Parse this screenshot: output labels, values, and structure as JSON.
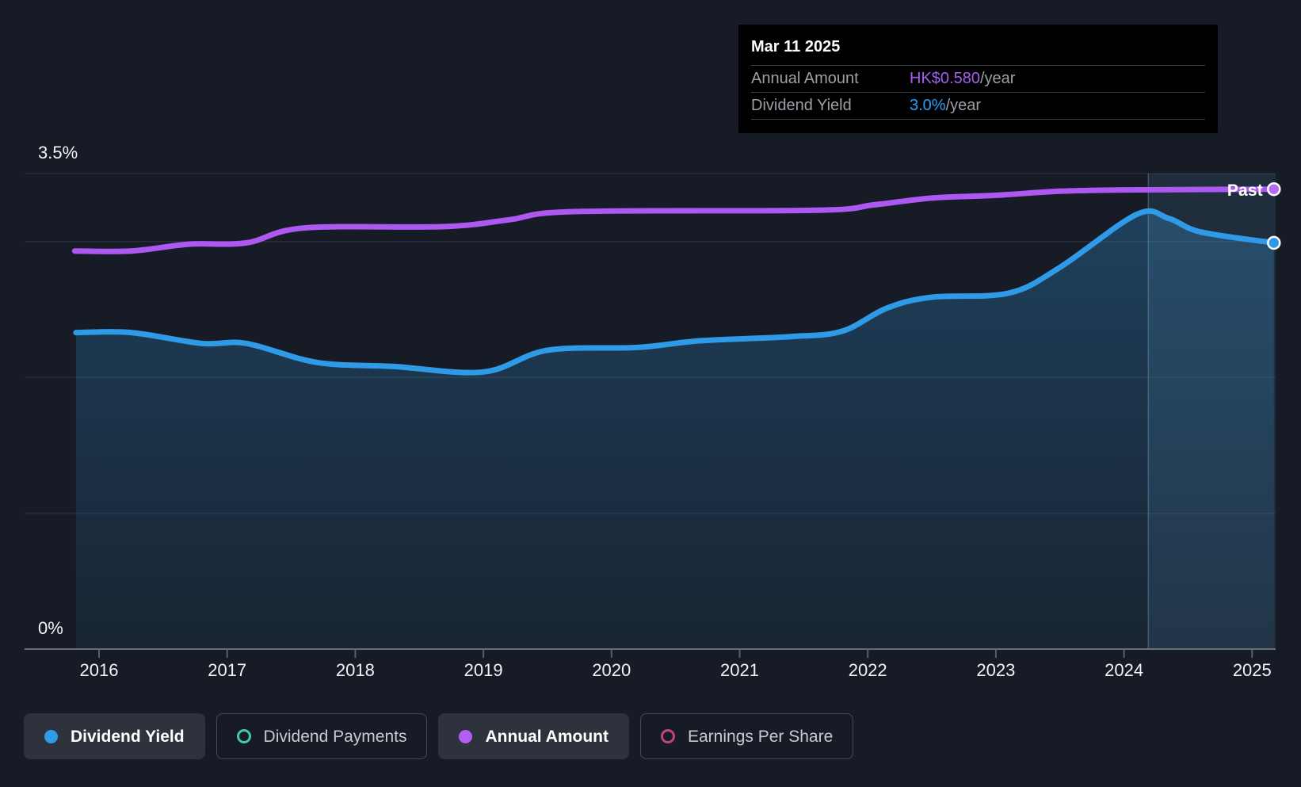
{
  "page": {
    "background": "#161b25"
  },
  "tooltip": {
    "date": "Mar 11 2025",
    "rows": [
      {
        "label": "Annual Amount",
        "value": "HK$0.580",
        "suffix": "/year",
        "color": "#a45ef2"
      },
      {
        "label": "Dividend Yield",
        "value": "3.0%",
        "suffix": "/year",
        "color": "#2e9df7"
      }
    ]
  },
  "past_label": "Past",
  "legend": {
    "items": [
      {
        "label": "Dividend Yield",
        "color": "#2e9ce9",
        "swatch": "filled",
        "active": true
      },
      {
        "label": "Dividend Payments",
        "color": "#40c8b5",
        "swatch": "ring",
        "active": false
      },
      {
        "label": "Annual Amount",
        "color": "#b15ef2",
        "swatch": "filled",
        "active": true
      },
      {
        "label": "Earnings Per Share",
        "color": "#bf4680",
        "swatch": "ring",
        "active": false
      }
    ]
  },
  "chart_data": {
    "type": "area",
    "title": "Dividend history (yield and annual amount)",
    "x_axis": {
      "ticks": [
        2016,
        2017,
        2018,
        2019,
        2020,
        2021,
        2022,
        2023,
        2024,
        2025
      ],
      "range": [
        2015.77,
        2025.2
      ]
    },
    "y_axis": {
      "range": [
        0,
        3.5
      ],
      "unit": "%",
      "gridlines": [
        {
          "value": 3.5,
          "label": "3.5%"
        },
        {
          "value": 3.0
        },
        {
          "value": 2.0
        },
        {
          "value": 1.0
        },
        {
          "value": 0,
          "label": "0%"
        }
      ]
    },
    "past_divider_x": 2024.19,
    "series": [
      {
        "name": "Dividend Yield",
        "type": "area-line",
        "unit": "%",
        "color": "#2f9be8",
        "end_value_label": "3.0%/year",
        "points": [
          [
            2015.82,
            2.33
          ],
          [
            2016.25,
            2.33
          ],
          [
            2016.8,
            2.25
          ],
          [
            2017.15,
            2.25
          ],
          [
            2017.7,
            2.11
          ],
          [
            2018.3,
            2.08
          ],
          [
            2019.0,
            2.04
          ],
          [
            2019.5,
            2.2
          ],
          [
            2020.2,
            2.22
          ],
          [
            2020.7,
            2.27
          ],
          [
            2021.4,
            2.3
          ],
          [
            2021.8,
            2.34
          ],
          [
            2022.15,
            2.51
          ],
          [
            2022.5,
            2.59
          ],
          [
            2023.1,
            2.62
          ],
          [
            2023.5,
            2.81
          ],
          [
            2024.1,
            3.2
          ],
          [
            2024.35,
            3.17
          ],
          [
            2024.6,
            3.07
          ],
          [
            2025.17,
            2.99
          ]
        ]
      },
      {
        "name": "Annual Amount",
        "type": "line",
        "unit": "HK$/year (own hidden scale; values are plotted positions on the % axis)",
        "color": "#ae58f2",
        "end_value_label": "HK$0.580/year",
        "points": [
          [
            2015.81,
            2.93
          ],
          [
            2016.25,
            2.93
          ],
          [
            2016.7,
            2.98
          ],
          [
            2017.15,
            2.99
          ],
          [
            2017.6,
            3.1
          ],
          [
            2018.7,
            3.11
          ],
          [
            2019.2,
            3.16
          ],
          [
            2019.7,
            3.22
          ],
          [
            2021.6,
            3.23
          ],
          [
            2022.05,
            3.27
          ],
          [
            2022.5,
            3.32
          ],
          [
            2023.0,
            3.34
          ],
          [
            2023.5,
            3.37
          ],
          [
            2024.0,
            3.38
          ],
          [
            2025.17,
            3.385
          ]
        ]
      }
    ]
  }
}
